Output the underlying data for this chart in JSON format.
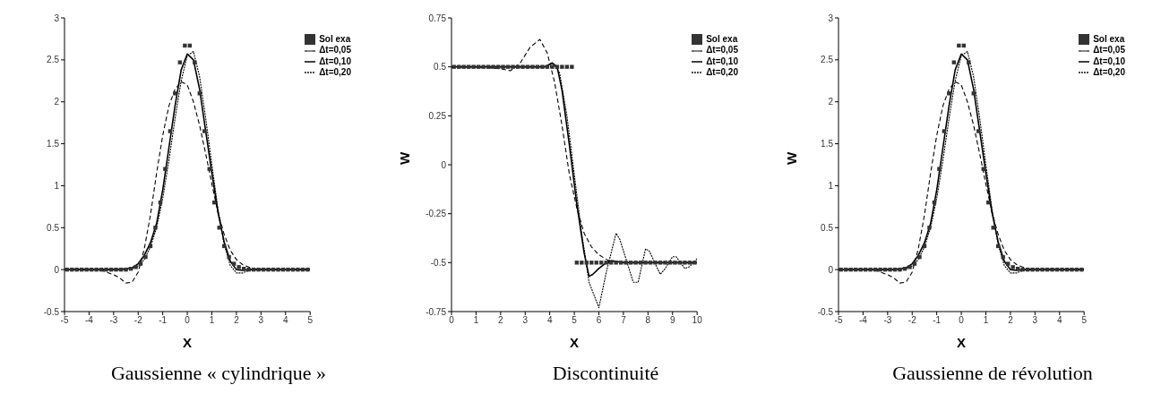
{
  "chart_data": [
    {
      "type": "line",
      "title": "Gaussienne « cylindrique »",
      "xlabel": "X",
      "xlim": [
        -5,
        5
      ],
      "xticks": [
        -5,
        -4,
        -3,
        -2,
        -1,
        0,
        1,
        2,
        3,
        4,
        5
      ],
      "ylim": [
        -0.5,
        3
      ],
      "yticks": [
        -0.5,
        0,
        0.5,
        1,
        1.5,
        2,
        2.5,
        3
      ],
      "legend": "top right",
      "grid": false,
      "x": [
        -5,
        -4.5,
        -4,
        -3.5,
        -3,
        -2.75,
        -2.5,
        -2.25,
        -2,
        -1.75,
        -1.5,
        -1.25,
        -1,
        -0.75,
        -0.5,
        -0.25,
        0,
        0.25,
        0.5,
        0.75,
        1,
        1.25,
        1.5,
        1.75,
        2,
        2.25,
        2.5,
        2.75,
        3,
        3.5,
        4,
        4.5,
        5
      ],
      "series": [
        {
          "name": "Sol exa",
          "type": "scatter",
          "marker": "square",
          "color": "#333333",
          "x": [
            -4.9,
            -4.7,
            -4.5,
            -4.3,
            -4.1,
            -3.9,
            -3.7,
            -3.5,
            -3.3,
            -3.1,
            -2.9,
            -2.7,
            -2.5,
            -2.3,
            -2.1,
            -1.9,
            -1.7,
            -1.5,
            -1.3,
            -1.1,
            -0.9,
            -0.7,
            -0.5,
            -0.3,
            -0.1,
            0.1,
            0.3,
            0.5,
            0.7,
            0.9,
            1.1,
            1.3,
            1.5,
            1.7,
            1.9,
            2.1,
            2.3,
            2.5,
            2.7,
            2.9,
            3.1,
            3.3,
            3.5,
            3.7,
            3.9,
            4.1,
            4.3,
            4.5,
            4.7,
            4.9
          ],
          "values": [
            0,
            0,
            0,
            0,
            0,
            0,
            0,
            0,
            0,
            0,
            0,
            0,
            0,
            0.01,
            0.03,
            0.07,
            0.15,
            0.28,
            0.5,
            0.8,
            1.2,
            1.65,
            2.1,
            2.47,
            2.67,
            2.67,
            2.47,
            2.1,
            1.65,
            1.2,
            0.8,
            0.5,
            0.28,
            0.15,
            0.07,
            0.03,
            0.01,
            0,
            0,
            0,
            0,
            0,
            0,
            0,
            0,
            0,
            0,
            0,
            0,
            0
          ]
        },
        {
          "name": "Δt=0,05",
          "line_style": "dotted",
          "color": "#000000",
          "values": [
            0,
            0,
            0,
            0,
            0,
            0,
            0,
            0.01,
            0.04,
            0.12,
            0.27,
            0.5,
            0.85,
            1.3,
            1.8,
            2.25,
            2.55,
            2.6,
            2.3,
            1.8,
            1.25,
            0.72,
            0.3,
            0.05,
            -0.04,
            -0.04,
            -0.01,
            0,
            0,
            0,
            0,
            0,
            0
          ]
        },
        {
          "name": "Δt=0,10",
          "line_style": "solid",
          "color": "#000000",
          "values": [
            0,
            0,
            0,
            0,
            0,
            0,
            0.01,
            0.02,
            0.07,
            0.17,
            0.32,
            0.55,
            0.95,
            1.45,
            1.95,
            2.38,
            2.57,
            2.5,
            2.15,
            1.65,
            1.15,
            0.68,
            0.33,
            0.1,
            0,
            -0.01,
            0,
            0,
            0,
            0,
            0,
            0,
            0
          ]
        },
        {
          "name": "Δt=0,20",
          "line_style": "dashed",
          "color": "#000000",
          "values": [
            0,
            0,
            0,
            -0.01,
            -0.06,
            -0.1,
            -0.16,
            -0.15,
            -0.03,
            0.25,
            0.65,
            1.15,
            1.6,
            1.95,
            2.15,
            2.24,
            2.2,
            2,
            1.72,
            1.38,
            1.02,
            0.68,
            0.42,
            0.23,
            0.12,
            0.06,
            0.03,
            0.01,
            0,
            0,
            0,
            0,
            0
          ]
        }
      ]
    },
    {
      "type": "line",
      "title": "Discontinuité",
      "xlabel": "X",
      "ylabel": "W",
      "xlim": [
        0,
        10
      ],
      "xticks": [
        0,
        1,
        2,
        3,
        4,
        5,
        6,
        7,
        8,
        9,
        10
      ],
      "ylim": [
        -0.75,
        0.75
      ],
      "yticks": [
        -0.75,
        -0.5,
        -0.25,
        0,
        0.25,
        0.5,
        0.75
      ],
      "legend": "top right",
      "grid": false,
      "series": [
        {
          "name": "Sol exa",
          "type": "scatter",
          "marker": "square",
          "color": "#333333",
          "x": [
            0.1,
            0.3,
            0.5,
            0.7,
            0.9,
            1.1,
            1.3,
            1.5,
            1.7,
            1.9,
            2.1,
            2.3,
            2.5,
            2.7,
            2.9,
            3.1,
            3.3,
            3.5,
            3.7,
            3.9,
            4.1,
            4.3,
            4.5,
            4.7,
            4.9,
            5.1,
            5.3,
            5.5,
            5.7,
            5.9,
            6.1,
            6.3,
            6.5,
            6.7,
            6.9,
            7.1,
            7.3,
            7.5,
            7.7,
            7.9,
            8.1,
            8.3,
            8.5,
            8.7,
            8.9,
            9.1,
            9.3,
            9.5,
            9.7,
            9.9
          ],
          "values": [
            0.5,
            0.5,
            0.5,
            0.5,
            0.5,
            0.5,
            0.5,
            0.5,
            0.5,
            0.5,
            0.5,
            0.5,
            0.5,
            0.5,
            0.5,
            0.5,
            0.5,
            0.5,
            0.5,
            0.5,
            0.5,
            0.5,
            0.5,
            0.5,
            0.5,
            -0.5,
            -0.5,
            -0.5,
            -0.5,
            -0.5,
            -0.5,
            -0.5,
            -0.5,
            -0.5,
            -0.5,
            -0.5,
            -0.5,
            -0.5,
            -0.5,
            -0.5,
            -0.5,
            -0.5,
            -0.5,
            -0.5,
            -0.5,
            -0.5,
            -0.5,
            -0.5,
            -0.5,
            -0.5
          ]
        },
        {
          "name": "Δt=0,05",
          "line_style": "dotted",
          "color": "#000000",
          "x": [
            0,
            1,
            2,
            3,
            3.8,
            4.1,
            4.4,
            4.7,
            5,
            5.3,
            5.6,
            6,
            6.3,
            6.7,
            6.85,
            7.4,
            7.6,
            7.9,
            8.05,
            8.5,
            8.7,
            9,
            9.15,
            9.5,
            9.7,
            10
          ],
          "values": [
            0.5,
            0.5,
            0.5,
            0.5,
            0.5,
            0.52,
            0.47,
            0.25,
            -0.05,
            -0.35,
            -0.6,
            -0.73,
            -0.55,
            -0.35,
            -0.38,
            -0.6,
            -0.6,
            -0.43,
            -0.44,
            -0.56,
            -0.53,
            -0.47,
            -0.47,
            -0.53,
            -0.52,
            -0.48
          ]
        },
        {
          "name": "Δt=0,10",
          "line_style": "solid",
          "color": "#000000",
          "x": [
            0,
            1,
            2,
            3,
            3.8,
            4.1,
            4.3,
            4.5,
            4.8,
            5.1,
            5.4,
            5.6,
            5.75,
            6,
            6.3,
            6.5,
            7,
            8,
            9,
            10
          ],
          "values": [
            0.5,
            0.5,
            0.5,
            0.5,
            0.5,
            0.52,
            0.5,
            0.38,
            0.1,
            -0.2,
            -0.45,
            -0.57,
            -0.56,
            -0.53,
            -0.5,
            -0.49,
            -0.5,
            -0.5,
            -0.5,
            -0.5
          ]
        },
        {
          "name": "Δt=0,20",
          "line_style": "dashed",
          "color": "#000000",
          "x": [
            0,
            1,
            2,
            2.4,
            2.8,
            3.2,
            3.6,
            3.9,
            4.2,
            4.5,
            4.8,
            5.1,
            5.4,
            5.7,
            6,
            6.4,
            7,
            8,
            9,
            10
          ],
          "values": [
            0.5,
            0.5,
            0.49,
            0.48,
            0.52,
            0.6,
            0.64,
            0.57,
            0.42,
            0.2,
            -0.05,
            -0.22,
            -0.35,
            -0.42,
            -0.46,
            -0.49,
            -0.5,
            -0.5,
            -0.5,
            -0.5
          ]
        }
      ]
    },
    {
      "type": "line",
      "title": "Gaussienne de révolution",
      "xlabel": "X",
      "ylabel": "W",
      "xlim": [
        -5,
        5
      ],
      "xticks": [
        -5,
        -4,
        -3,
        -2,
        -1,
        0,
        1,
        2,
        3,
        4,
        5
      ],
      "ylim": [
        -0.5,
        3
      ],
      "yticks": [
        -0.5,
        0,
        0.5,
        1,
        1.5,
        2,
        2.5,
        3
      ],
      "legend": "top right",
      "grid": false,
      "x": [
        -5,
        -4.5,
        -4,
        -3.5,
        -3,
        -2.75,
        -2.5,
        -2.25,
        -2,
        -1.75,
        -1.5,
        -1.25,
        -1,
        -0.75,
        -0.5,
        -0.25,
        0,
        0.25,
        0.5,
        0.75,
        1,
        1.25,
        1.5,
        1.75,
        2,
        2.25,
        2.5,
        2.75,
        3,
        3.5,
        4,
        4.5,
        5
      ],
      "series": [
        {
          "name": "Sol exa",
          "type": "scatter",
          "marker": "square",
          "color": "#333333",
          "x": [
            -4.9,
            -4.7,
            -4.5,
            -4.3,
            -4.1,
            -3.9,
            -3.7,
            -3.5,
            -3.3,
            -3.1,
            -2.9,
            -2.7,
            -2.5,
            -2.3,
            -2.1,
            -1.9,
            -1.7,
            -1.5,
            -1.3,
            -1.1,
            -0.9,
            -0.7,
            -0.5,
            -0.3,
            -0.1,
            0.1,
            0.3,
            0.5,
            0.7,
            0.9,
            1.1,
            1.3,
            1.5,
            1.7,
            1.9,
            2.1,
            2.3,
            2.5,
            2.7,
            2.9,
            3.1,
            3.3,
            3.5,
            3.7,
            3.9,
            4.1,
            4.3,
            4.5,
            4.7,
            4.9
          ],
          "values": [
            0,
            0,
            0,
            0,
            0,
            0,
            0,
            0,
            0,
            0,
            0,
            0,
            0,
            0.01,
            0.03,
            0.07,
            0.15,
            0.28,
            0.5,
            0.8,
            1.2,
            1.65,
            2.1,
            2.47,
            2.67,
            2.67,
            2.47,
            2.1,
            1.65,
            1.2,
            0.8,
            0.5,
            0.28,
            0.15,
            0.07,
            0.03,
            0.01,
            0,
            0,
            0,
            0,
            0,
            0,
            0,
            0,
            0,
            0,
            0,
            0,
            0
          ]
        },
        {
          "name": "Δt=0,05",
          "line_style": "dotted",
          "color": "#000000",
          "values": [
            0,
            0,
            0,
            0,
            0,
            0,
            0,
            0.01,
            0.04,
            0.12,
            0.27,
            0.5,
            0.85,
            1.3,
            1.8,
            2.25,
            2.55,
            2.6,
            2.3,
            1.8,
            1.25,
            0.72,
            0.3,
            0.05,
            -0.04,
            -0.04,
            -0.01,
            0,
            0,
            0,
            0,
            0,
            0
          ]
        },
        {
          "name": "Δt=0,10",
          "line_style": "solid",
          "color": "#000000",
          "values": [
            0,
            0,
            0,
            0,
            0,
            0,
            0.01,
            0.02,
            0.07,
            0.17,
            0.32,
            0.55,
            0.95,
            1.45,
            1.95,
            2.38,
            2.57,
            2.5,
            2.15,
            1.65,
            1.15,
            0.68,
            0.33,
            0.1,
            0,
            -0.01,
            0,
            0,
            0,
            0,
            0,
            0,
            0
          ]
        },
        {
          "name": "Δt=0,20",
          "line_style": "dashed",
          "color": "#000000",
          "values": [
            0,
            0,
            0,
            -0.01,
            -0.06,
            -0.1,
            -0.16,
            -0.15,
            -0.03,
            0.25,
            0.65,
            1.15,
            1.6,
            1.95,
            2.15,
            2.24,
            2.2,
            2,
            1.72,
            1.38,
            1.02,
            0.68,
            0.42,
            0.23,
            0.12,
            0.06,
            0.03,
            0.01,
            0,
            0,
            0,
            0,
            0
          ]
        }
      ]
    }
  ]
}
